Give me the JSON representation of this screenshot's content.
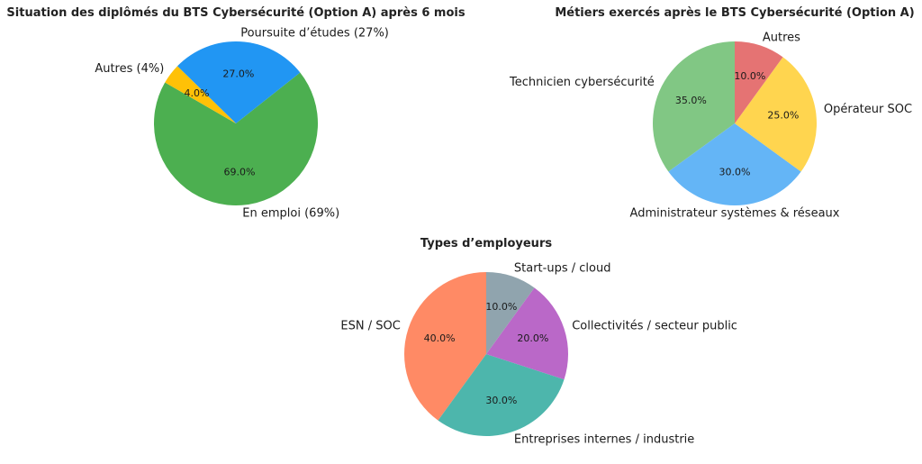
{
  "chart_data": [
    {
      "type": "pie",
      "title": "Situation des diplômés du BTS Cybersécurité (Option A) après 6 mois",
      "categories": [
        "En emploi (69%)",
        "Poursuite d’études (27%)",
        "Autres (4%)"
      ],
      "values": [
        69.0,
        27.0,
        4.0
      ],
      "value_labels": [
        "69.0%",
        "27.0%",
        "4.0%"
      ],
      "colors": [
        "#4caf50",
        "#2196f3",
        "#ffc107"
      ],
      "start_angle_deg": 150,
      "direction": "counterclockwise"
    },
    {
      "type": "pie",
      "title": "Métiers exercés après le BTS Cybersécurité (Option A)",
      "categories": [
        "Technicien cybersécurité",
        "Administrateur systèmes & réseaux",
        "Opérateur SOC",
        "Autres"
      ],
      "values": [
        35.0,
        30.0,
        25.0,
        10.0
      ],
      "value_labels": [
        "35.0%",
        "30.0%",
        "25.0%",
        "10.0%"
      ],
      "colors": [
        "#81c784",
        "#64b5f6",
        "#ffd54f",
        "#e57373"
      ],
      "start_angle_deg": 90,
      "direction": "counterclockwise"
    },
    {
      "type": "pie",
      "title": "Types d’employeurs",
      "categories": [
        "ESN / SOC",
        "Entreprises internes / industrie",
        "Collectivités / secteur public",
        "Start-ups / cloud"
      ],
      "values": [
        40.0,
        30.0,
        20.0,
        10.0
      ],
      "value_labels": [
        "40.0%",
        "30.0%",
        "20.0%",
        "10.0%"
      ],
      "colors": [
        "#ff8a65",
        "#4db6ac",
        "#ba68c8",
        "#90a4ae"
      ],
      "start_angle_deg": 90,
      "direction": "counterclockwise"
    }
  ]
}
